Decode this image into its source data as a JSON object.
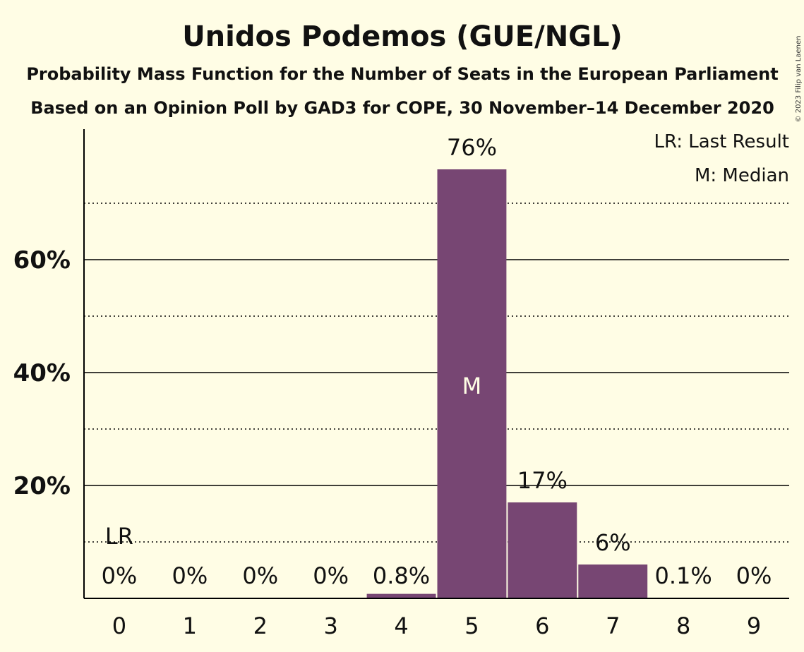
{
  "title": "Unidos Podemos (GUE/NGL)",
  "subtitle1": "Probability Mass Function for the Number of Seats in the European Parliament",
  "subtitle2": "Based on an Opinion Poll by GAD3 for COPE, 30 November–14 December 2020",
  "copyright": "© 2023 Filip van Laenen",
  "legend": {
    "last_result": "LR: Last Result",
    "median": "M: Median"
  },
  "colors": {
    "bar": "#774673",
    "background": "#fffde5",
    "grid": "#000000"
  },
  "chart_data": {
    "type": "bar",
    "categories": [
      "0",
      "1",
      "2",
      "3",
      "4",
      "5",
      "6",
      "7",
      "8",
      "9"
    ],
    "values": [
      0,
      0,
      0,
      0,
      0.8,
      76,
      17,
      6,
      0.1,
      0
    ],
    "value_labels": [
      "0%",
      "0%",
      "0%",
      "0%",
      "0.8%",
      "76%",
      "17%",
      "6%",
      "0.1%",
      "0%"
    ],
    "ylim": [
      0,
      83
    ],
    "yticks": [
      {
        "value": 20,
        "label": "20%"
      },
      {
        "value": 40,
        "label": "40%"
      },
      {
        "value": 60,
        "label": "60%"
      }
    ],
    "minor_gridlines": [
      10,
      30,
      50,
      70
    ],
    "last_result": {
      "category": "0",
      "label": "LR"
    },
    "median": {
      "category": "5",
      "label": "M"
    }
  }
}
